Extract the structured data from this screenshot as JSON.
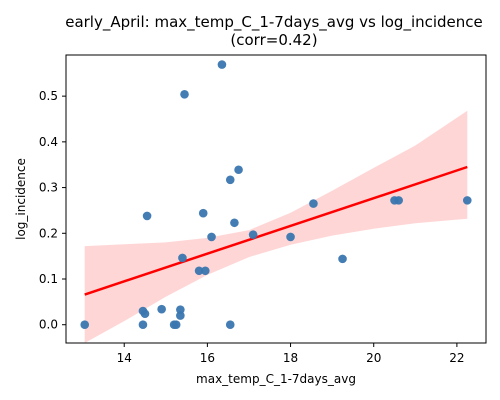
{
  "chart_data": {
    "type": "scatter",
    "title": "early_April: max_temp_C_1-7days_avg vs log_incidence",
    "subtitle": "(corr=0.42)",
    "xlabel": "max_temp_C_1-7days_avg",
    "ylabel": "log_incidence",
    "xlim": [
      12.6,
      22.7
    ],
    "ylim": [
      -0.04,
      0.59
    ],
    "xticks": [
      14,
      16,
      18,
      20,
      22
    ],
    "yticks": [
      0.0,
      0.1,
      0.2,
      0.3,
      0.4,
      0.5
    ],
    "grid": false,
    "points": [
      {
        "x": 13.05,
        "y": 0.0
      },
      {
        "x": 14.45,
        "y": 0.03
      },
      {
        "x": 14.45,
        "y": 0.0
      },
      {
        "x": 14.5,
        "y": 0.024
      },
      {
        "x": 14.55,
        "y": 0.238
      },
      {
        "x": 14.9,
        "y": 0.034
      },
      {
        "x": 15.2,
        "y": 0.0
      },
      {
        "x": 15.25,
        "y": 0.0
      },
      {
        "x": 15.35,
        "y": 0.02
      },
      {
        "x": 15.35,
        "y": 0.033
      },
      {
        "x": 15.4,
        "y": 0.146
      },
      {
        "x": 15.45,
        "y": 0.504
      },
      {
        "x": 15.8,
        "y": 0.118
      },
      {
        "x": 15.9,
        "y": 0.244
      },
      {
        "x": 15.95,
        "y": 0.118
      },
      {
        "x": 16.1,
        "y": 0.192
      },
      {
        "x": 16.35,
        "y": 0.569
      },
      {
        "x": 16.55,
        "y": 0.317
      },
      {
        "x": 16.55,
        "y": 0.0
      },
      {
        "x": 16.65,
        "y": 0.223
      },
      {
        "x": 16.75,
        "y": 0.339
      },
      {
        "x": 17.1,
        "y": 0.197
      },
      {
        "x": 18.0,
        "y": 0.192
      },
      {
        "x": 18.55,
        "y": 0.265
      },
      {
        "x": 19.25,
        "y": 0.144
      },
      {
        "x": 20.5,
        "y": 0.272
      },
      {
        "x": 20.6,
        "y": 0.272
      },
      {
        "x": 22.25,
        "y": 0.272
      }
    ],
    "regression": {
      "x": [
        13.05,
        22.25
      ],
      "y": [
        0.066,
        0.345
      ]
    },
    "confidence_band": {
      "x": [
        13.05,
        14.0,
        15.0,
        16.0,
        17.0,
        18.0,
        19.0,
        20.0,
        21.0,
        22.25
      ],
      "lower": [
        -0.04,
        0.008,
        0.061,
        0.109,
        0.148,
        0.175,
        0.195,
        0.21,
        0.222,
        0.232
      ],
      "upper": [
        0.172,
        0.176,
        0.18,
        0.19,
        0.207,
        0.245,
        0.293,
        0.343,
        0.392,
        0.468
      ]
    },
    "colors": {
      "points": "#3a76af",
      "line": "#ff0000",
      "band": "#ffd6d6"
    }
  }
}
